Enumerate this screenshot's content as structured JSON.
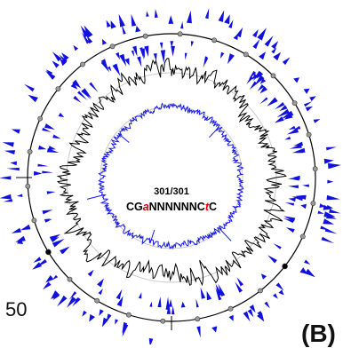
{
  "figure": {
    "center_count": "301/301",
    "motif": {
      "prefix": "CG",
      "mod1": "a",
      "middle": "NNNNNNC",
      "mod2": "t",
      "suffix": "C"
    },
    "side_number": "50",
    "panel_label": "(B)"
  },
  "colors": {
    "tick_marks": "#1010e0",
    "outer_ring": "#000000",
    "coverage_trace": "#000000",
    "inner_trace": "#1a1ae8",
    "guide_rings": "#c8c8c8",
    "motif_highlight": "#e00000",
    "axis_markers": "#000000"
  }
}
